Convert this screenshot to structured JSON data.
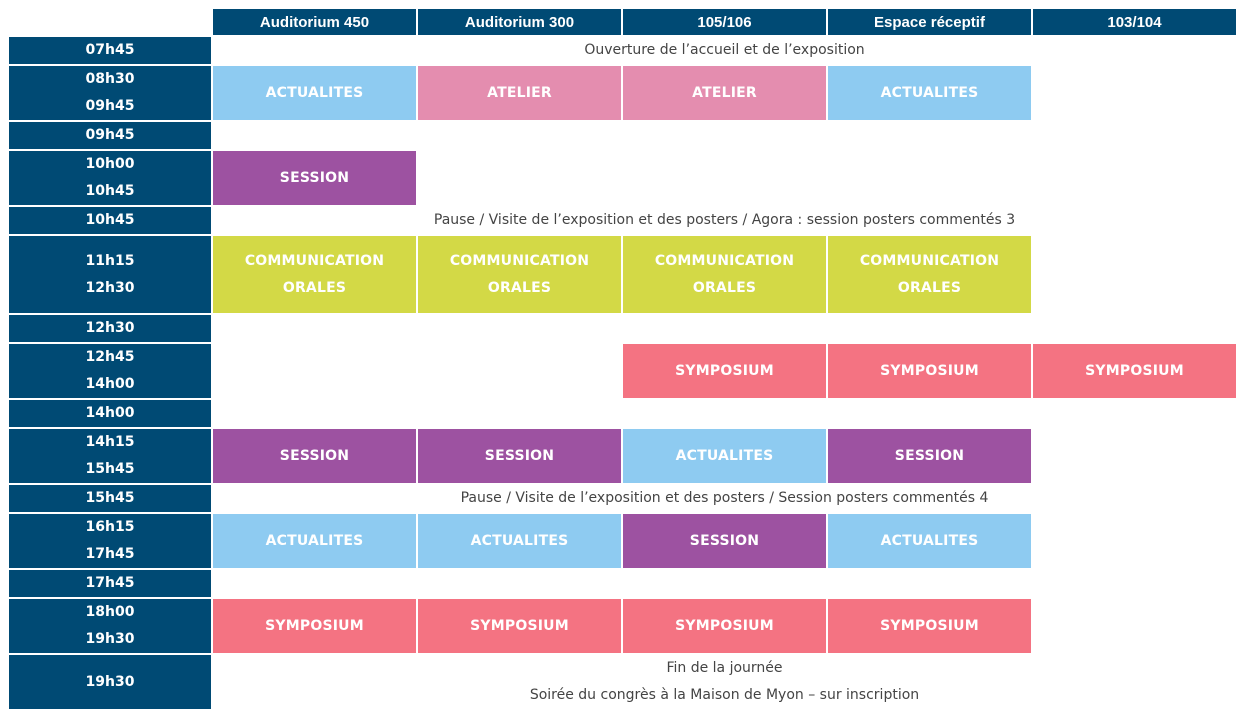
{
  "rooms": [
    "Auditorium 450",
    "Auditorium 300",
    "105/106",
    "Espace réceptif",
    "103/104"
  ],
  "times": {
    "t0745": "07h45",
    "t0830": "08h30",
    "t0945a": "09h45",
    "t0945b": "09h45",
    "t1000": "10h00",
    "t1045a": "10h45",
    "t1045b": "10h45",
    "t1115": "11h15",
    "t1230a": "12h30",
    "t1230b": "12h30",
    "t1245": "12h45",
    "t1400a": "14h00",
    "t1400b": "14h00",
    "t1415": "14h15",
    "t1545a": "15h45",
    "t1545b": "15h45",
    "t1615": "16h15",
    "t1745a": "17h45",
    "t1745b": "17h45",
    "t1800": "18h00",
    "t1930a": "19h30",
    "t1930b": "19h30"
  },
  "labels": {
    "actualites": "ACTUALITES",
    "atelier": "ATELIER",
    "session": "SESSION",
    "communication": "COMMUNICATION",
    "orales": "ORALES",
    "symposium": "SYMPOSIUM"
  },
  "notes": {
    "opening": "Ouverture de l’accueil et de l’exposition",
    "pause1": "Pause / Visite de l’exposition et des posters / Agora : session posters commentés 3",
    "pause2": "Pause / Visite de l’exposition et des posters / Session posters commentés 4",
    "end_line1": "Fin de la journée",
    "end_line2": "Soirée du congrès à la Maison de Myon – sur inscription"
  },
  "colors": {
    "header_bg": "#004a74",
    "actualites": "#8ecbf1",
    "atelier": "#e48daf",
    "session": "#9d52a1",
    "communication_orales": "#d3d946",
    "symposium": "#f47382"
  }
}
